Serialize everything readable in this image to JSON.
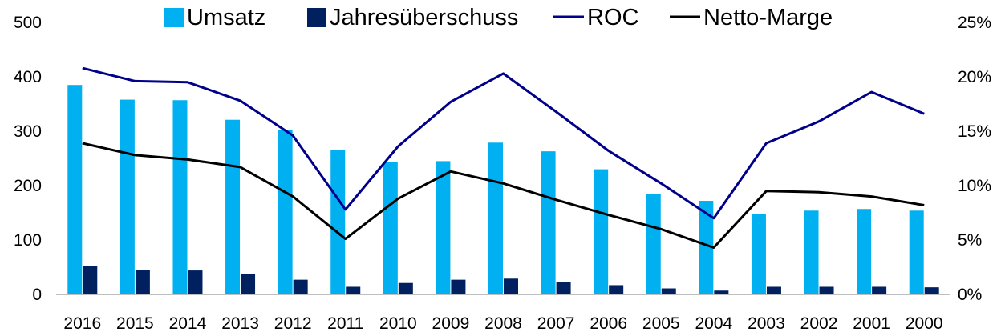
{
  "chart_data": {
    "type": "bar",
    "categories": [
      "2016",
      "2015",
      "2014",
      "2013",
      "2012",
      "2011",
      "2010",
      "2009",
      "2008",
      "2007",
      "2006",
      "2005",
      "2004",
      "2003",
      "2002",
      "2001",
      "2000"
    ],
    "series": [
      {
        "name": "Umsatz",
        "kind": "bar",
        "axis": "left",
        "color": "#00b0f0",
        "values": [
          385,
          358,
          357,
          321,
          302,
          266,
          244,
          245,
          279,
          263,
          230,
          185,
          172,
          148,
          154,
          157,
          154
        ]
      },
      {
        "name": "Jahresüberschuss",
        "kind": "bar",
        "axis": "left",
        "color": "#002060",
        "values": [
          52,
          45,
          44,
          38,
          27,
          14,
          21,
          27,
          29,
          23,
          17,
          11,
          7,
          14,
          14,
          14,
          13
        ]
      },
      {
        "name": "ROC",
        "kind": "line",
        "axis": "right",
        "color": "#00008b",
        "values": [
          20.8,
          19.6,
          19.5,
          17.8,
          14.6,
          7.8,
          13.6,
          17.7,
          20.3,
          16.8,
          13.2,
          10.2,
          7.0,
          13.9,
          15.9,
          18.6,
          16.6
        ]
      },
      {
        "name": "Netto-Marge",
        "kind": "line",
        "axis": "right",
        "color": "#000000",
        "values": [
          13.9,
          12.8,
          12.4,
          11.7,
          9.0,
          5.1,
          8.8,
          11.3,
          10.2,
          8.7,
          7.3,
          6.0,
          4.3,
          9.5,
          9.4,
          9.0,
          8.2
        ]
      }
    ],
    "yticks_left": [
      "0",
      "100",
      "200",
      "300",
      "400",
      "500"
    ],
    "yticks_right": [
      "0%",
      "5%",
      "10%",
      "15%",
      "20%",
      "25%"
    ],
    "ylim_left": [
      0,
      500
    ],
    "ylim_right": [
      0,
      25
    ],
    "legend_position": "top",
    "grid": false,
    "title": "",
    "xlabel": "",
    "ylabel": ""
  }
}
